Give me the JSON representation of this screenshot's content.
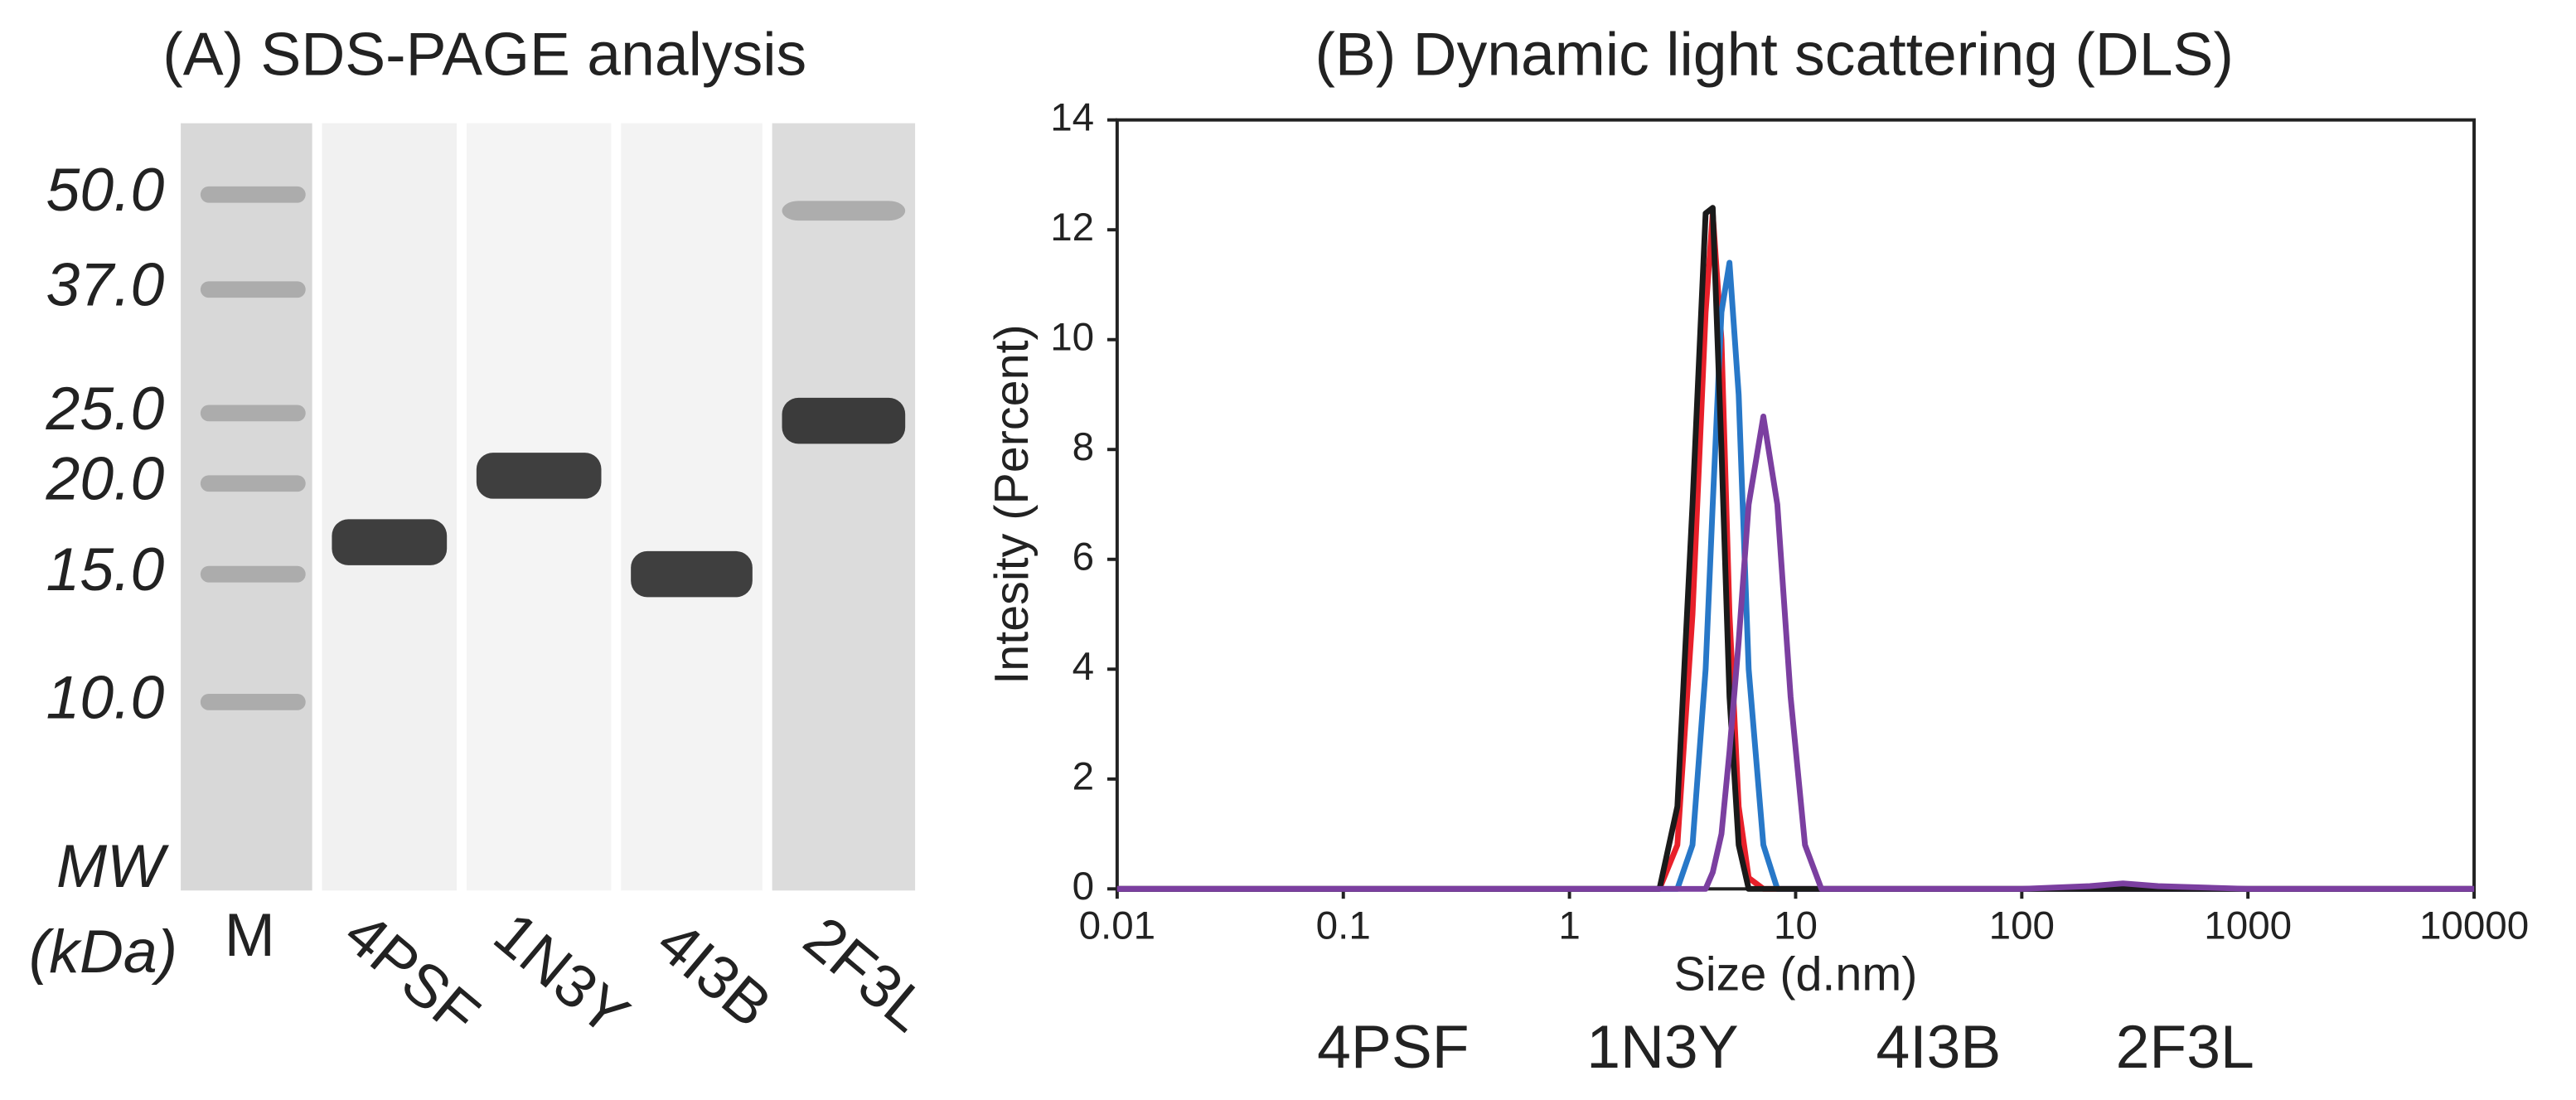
{
  "chart_data": [
    {
      "type": "gel",
      "title": "(A) SDS-PAGE analysis",
      "ylabel": [
        "MW",
        "(kDa)"
      ],
      "log_y": true,
      "ylim": [
        5.5,
        62.7
      ],
      "yticks": [
        {
          "value": 50,
          "label": "50.0"
        },
        {
          "value": 37,
          "label": "37.0"
        },
        {
          "value": 25,
          "label": "25.0"
        },
        {
          "value": 20,
          "label": "20.0"
        },
        {
          "value": 15,
          "label": "15.0"
        },
        {
          "value": 10,
          "label": "10.0"
        }
      ],
      "marker_lane": "M",
      "series": [
        {
          "name": "4PSF",
          "color": "#e8202a",
          "values": [
            16.6
          ]
        },
        {
          "name": "1N3Y",
          "color": "#2878c8",
          "values": [
            20.5
          ]
        },
        {
          "name": "4I3B",
          "color": "#1a1a1a",
          "values": [
            15.0
          ]
        },
        {
          "name": "2F3L",
          "color": "#7b3fa0",
          "values": [
            24.4,
            47.5
          ]
        }
      ]
    },
    {
      "type": "line",
      "title": "(B) Dynamic light scattering (DLS)",
      "xlabel": "Size (d.nm)",
      "ylabel": "Intesity (Percent)",
      "log_x": true,
      "xlim": [
        0.01,
        10000
      ],
      "xticks": [
        0.01,
        0.1,
        1,
        10,
        100,
        1000,
        10000
      ],
      "ylim": [
        0,
        14
      ],
      "yticks": [
        0,
        2,
        4,
        6,
        8,
        10,
        12,
        14
      ],
      "x": [
        0.01,
        0.1,
        1,
        2.5,
        3,
        3.5,
        4,
        4.3,
        4.7,
        5.1,
        5.6,
        6.2,
        7.2,
        8.3,
        9.5,
        11,
        13,
        20,
        100,
        200,
        280,
        400,
        1000,
        10000
      ],
      "series": [
        {
          "name": "4PSF",
          "color": "#e8202a",
          "values": [
            0,
            0,
            0,
            0,
            0.8,
            5,
            10.5,
            12.3,
            10,
            5,
            1.5,
            0.2,
            0,
            0,
            0,
            0,
            0,
            0,
            0,
            0,
            0,
            0,
            0,
            0
          ]
        },
        {
          "name": "1N3Y",
          "color": "#2878c8",
          "values": [
            0,
            0,
            0,
            0,
            0,
            0.8,
            4,
            7,
            10.5,
            11.4,
            9,
            4,
            0.8,
            0,
            0,
            0,
            0,
            0,
            0,
            0,
            0,
            0,
            0,
            0
          ]
        },
        {
          "name": "4I3B",
          "color": "#1a1a1a",
          "values": [
            0,
            0,
            0,
            0,
            1.5,
            7,
            12.3,
            12.4,
            8,
            3.5,
            0.8,
            0,
            0,
            0,
            0,
            0,
            0,
            0,
            0,
            0,
            0,
            0,
            0,
            0
          ]
        },
        {
          "name": "2F3L",
          "color": "#7b3fa0",
          "values": [
            0,
            0,
            0,
            0,
            0,
            0,
            0,
            0.3,
            1,
            2.5,
            4.5,
            7,
            8.6,
            7,
            3.5,
            0.8,
            0,
            0,
            0,
            0.05,
            0.1,
            0.05,
            0,
            0
          ]
        }
      ]
    }
  ]
}
